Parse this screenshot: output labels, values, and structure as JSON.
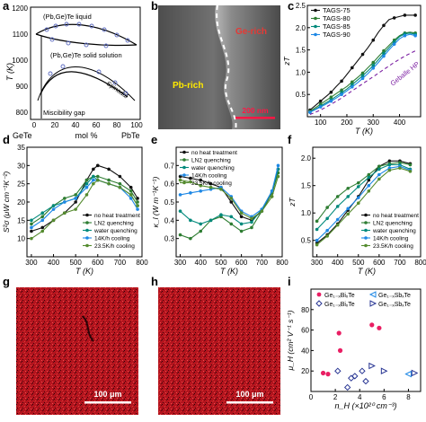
{
  "panels": [
    {
      "letter": "a"
    },
    {
      "letter": "b"
    },
    {
      "letter": "c"
    },
    {
      "letter": "d"
    },
    {
      "letter": "e"
    },
    {
      "letter": "f"
    },
    {
      "letter": "g"
    },
    {
      "letter": "h"
    },
    {
      "letter": "i"
    }
  ],
  "phase_diagram": {
    "ylabel": "T (K)",
    "xlabel": "mol %",
    "x_left_label": "GeTe",
    "x_right_label": "PbTe",
    "y_ticks": [
      800,
      900,
      1000,
      1100,
      1200
    ],
    "x_ticks": [
      0,
      20,
      40,
      60,
      80,
      100
    ],
    "labels": [
      "(Pb,Ge)Te liquid",
      "(Pb,Ge)Te solid solution",
      "Spinodal",
      "Miscibility gap"
    ]
  },
  "micrograph_b": {
    "labels": [
      "Ge-rich",
      "Pb-rich"
    ],
    "scalebar": "200 nm"
  },
  "map_g": {
    "scalebar": "100 μm"
  },
  "map_h": {
    "scalebar": "100 μm"
  },
  "chart_data": [
    {
      "panel": "c",
      "type": "line",
      "xlabel": "T (K)",
      "ylabel": "zT",
      "xlim": [
        50,
        480
      ],
      "ylim": [
        0,
        2.5
      ],
      "x_ticks": [
        100,
        200,
        300,
        400
      ],
      "y_ticks": [
        0.5,
        1.0,
        1.5,
        2.0,
        2.5
      ],
      "legend_position": "top-left",
      "series": [
        {
          "name": "TAGS-75",
          "color": "#111111",
          "x": [
            60,
            80,
            100,
            120,
            140,
            160,
            180,
            200,
            220,
            240,
            260,
            280,
            300,
            320,
            340,
            360,
            380,
            400,
            420,
            440,
            460
          ],
          "y": [
            0.15,
            0.25,
            0.35,
            0.45,
            0.55,
            0.68,
            0.8,
            0.95,
            1.1,
            1.25,
            1.4,
            1.55,
            1.72,
            1.9,
            2.05,
            2.18,
            2.22,
            2.25,
            2.28,
            2.28,
            2.28
          ]
        },
        {
          "name": "TAGS-80",
          "color": "#2e7d32",
          "x": [
            60,
            80,
            100,
            120,
            140,
            160,
            180,
            200,
            220,
            240,
            260,
            280,
            300,
            320,
            340,
            360,
            380,
            400,
            420,
            440,
            460
          ],
          "y": [
            0.12,
            0.2,
            0.28,
            0.36,
            0.44,
            0.52,
            0.6,
            0.68,
            0.78,
            0.88,
            0.98,
            1.1,
            1.22,
            1.35,
            1.48,
            1.6,
            1.72,
            1.82,
            1.88,
            1.9,
            1.88
          ]
        },
        {
          "name": "TAGS-85",
          "color": "#00897b",
          "x": [
            60,
            80,
            100,
            120,
            140,
            160,
            180,
            200,
            220,
            240,
            260,
            280,
            300,
            320,
            340,
            360,
            380,
            400,
            420,
            440,
            460
          ],
          "y": [
            0.1,
            0.17,
            0.24,
            0.31,
            0.38,
            0.46,
            0.54,
            0.62,
            0.72,
            0.82,
            0.92,
            1.03,
            1.15,
            1.28,
            1.42,
            1.55,
            1.68,
            1.8,
            1.86,
            1.88,
            1.85
          ]
        },
        {
          "name": "TAGS-90",
          "color": "#1e88e5",
          "x": [
            60,
            80,
            100,
            120,
            140,
            160,
            180,
            200,
            220,
            240,
            260,
            280,
            300,
            320,
            340,
            360,
            380,
            400,
            420,
            440,
            460
          ],
          "y": [
            0.1,
            0.16,
            0.22,
            0.28,
            0.35,
            0.42,
            0.5,
            0.58,
            0.67,
            0.76,
            0.86,
            0.97,
            1.09,
            1.22,
            1.36,
            1.5,
            1.63,
            1.75,
            1.82,
            1.85,
            1.82
          ]
        },
        {
          "name": "Geballe HP",
          "color": "#7b1fa2",
          "dashed": true,
          "x": [
            60,
            100,
            140,
            180,
            220,
            260,
            300,
            340,
            380,
            420,
            460
          ],
          "y": [
            0.05,
            0.15,
            0.28,
            0.42,
            0.58,
            0.74,
            0.9,
            1.06,
            1.22,
            1.36,
            1.48
          ]
        }
      ]
    },
    {
      "panel": "d",
      "type": "line",
      "xlabel": "T (K)",
      "ylabel": "S²σ (μW cm⁻¹K⁻²)",
      "xlim": [
        280,
        800
      ],
      "ylim": [
        5,
        35
      ],
      "x_ticks": [
        300,
        400,
        500,
        600,
        700,
        800
      ],
      "y_ticks": [
        10,
        15,
        20,
        25,
        30,
        35
      ],
      "legend_position": "bottom-right",
      "series": [
        {
          "name": "no heat treatment",
          "color": "#111111",
          "x": [
            300,
            350,
            400,
            450,
            500,
            550,
            580,
            600,
            650,
            700,
            750,
            780
          ],
          "y": [
            12,
            13,
            15,
            17,
            20,
            26,
            29,
            30,
            29,
            27,
            24,
            21
          ]
        },
        {
          "name": "LN2 quenching",
          "color": "#2e7d32",
          "x": [
            300,
            350,
            400,
            450,
            500,
            550,
            580,
            600,
            650,
            700,
            750,
            780
          ],
          "y": [
            14,
            16,
            19,
            21,
            22,
            26,
            27,
            27,
            26,
            25,
            23,
            20
          ]
        },
        {
          "name": "water quenching",
          "color": "#00897b",
          "x": [
            300,
            350,
            400,
            450,
            500,
            550,
            580,
            600,
            650,
            700,
            750,
            780
          ],
          "y": [
            15,
            17,
            19,
            20,
            21,
            25,
            27,
            26,
            25,
            24,
            22,
            19
          ]
        },
        {
          "name": "14K/h cooling",
          "color": "#1e88e5",
          "x": [
            300,
            350,
            400,
            450,
            500,
            550,
            580,
            600,
            650,
            700,
            750,
            780
          ],
          "y": [
            13,
            15,
            18,
            20,
            21,
            24,
            26,
            26,
            25,
            24,
            21,
            18
          ]
        },
        {
          "name": "23.5K/h cooling",
          "color": "#558b2f",
          "x": [
            300,
            350,
            400,
            450,
            500,
            550,
            580,
            600,
            650,
            700,
            750,
            780
          ],
          "y": [
            10,
            12,
            15,
            17,
            18,
            22,
            25,
            26,
            25,
            24,
            22,
            19
          ]
        }
      ]
    },
    {
      "panel": "e",
      "type": "line",
      "xlabel": "T (K)",
      "ylabel": "κ_l (W m⁻¹K⁻¹)",
      "xlim": [
        280,
        800
      ],
      "ylim": [
        0.2,
        0.8
      ],
      "x_ticks": [
        300,
        400,
        500,
        600,
        700,
        800
      ],
      "y_ticks": [
        0.3,
        0.4,
        0.5,
        0.6,
        0.7
      ],
      "legend_position": "top-left",
      "series": [
        {
          "name": "no heat treatment",
          "color": "#111111",
          "x": [
            300,
            350,
            400,
            450,
            500,
            550,
            600,
            650,
            700,
            750,
            780
          ],
          "y": [
            0.64,
            0.63,
            0.62,
            0.6,
            0.58,
            0.5,
            0.42,
            0.4,
            0.45,
            0.55,
            0.68
          ]
        },
        {
          "name": "LN2 quenching",
          "color": "#2e7d32",
          "x": [
            300,
            350,
            400,
            450,
            500,
            550,
            600,
            650,
            700,
            750,
            780
          ],
          "y": [
            0.32,
            0.3,
            0.34,
            0.4,
            0.42,
            0.38,
            0.34,
            0.36,
            0.45,
            0.55,
            0.66
          ]
        },
        {
          "name": "water quenching",
          "color": "#00897b",
          "x": [
            300,
            350,
            400,
            450,
            500,
            550,
            600,
            650,
            700,
            750,
            780
          ],
          "y": [
            0.45,
            0.4,
            0.38,
            0.4,
            0.43,
            0.42,
            0.38,
            0.39,
            0.46,
            0.56,
            0.68
          ]
        },
        {
          "name": "14K/h cooling",
          "color": "#1e88e5",
          "x": [
            300,
            350,
            400,
            450,
            500,
            550,
            600,
            650,
            700,
            750,
            780
          ],
          "y": [
            0.54,
            0.55,
            0.56,
            0.57,
            0.58,
            0.53,
            0.45,
            0.42,
            0.46,
            0.56,
            0.7
          ]
        },
        {
          "name": "23.5K/h cooling",
          "color": "#558b2f",
          "x": [
            300,
            350,
            400,
            450,
            500,
            550,
            600,
            650,
            700,
            750,
            780
          ],
          "y": [
            0.62,
            0.61,
            0.59,
            0.58,
            0.57,
            0.52,
            0.44,
            0.41,
            0.45,
            0.53,
            0.64
          ]
        }
      ]
    },
    {
      "panel": "f",
      "type": "line",
      "xlabel": "T (K)",
      "ylabel": "zT",
      "xlim": [
        280,
        800
      ],
      "ylim": [
        0.2,
        2.2
      ],
      "x_ticks": [
        300,
        400,
        500,
        600,
        700,
        800
      ],
      "y_ticks": [
        0.5,
        1.0,
        1.5,
        2.0
      ],
      "legend_position": "bottom-right",
      "series": [
        {
          "name": "no heat treatment",
          "color": "#111111",
          "x": [
            300,
            350,
            400,
            450,
            500,
            550,
            600,
            650,
            700,
            750
          ],
          "y": [
            0.45,
            0.6,
            0.8,
            1.05,
            1.3,
            1.6,
            1.85,
            1.95,
            1.95,
            1.9
          ]
        },
        {
          "name": "LN2 quenching",
          "color": "#2e7d32",
          "x": [
            300,
            350,
            400,
            450,
            500,
            550,
            600,
            650,
            700,
            750
          ],
          "y": [
            0.85,
            1.1,
            1.3,
            1.45,
            1.55,
            1.7,
            1.85,
            1.9,
            1.92,
            1.88
          ]
        },
        {
          "name": "water quenching",
          "color": "#00897b",
          "x": [
            300,
            350,
            400,
            450,
            500,
            550,
            600,
            650,
            700,
            750
          ],
          "y": [
            0.7,
            0.9,
            1.12,
            1.3,
            1.48,
            1.65,
            1.8,
            1.88,
            1.88,
            1.8
          ]
        },
        {
          "name": "14K/h cooling",
          "color": "#1e88e5",
          "x": [
            300,
            350,
            400,
            450,
            500,
            550,
            600,
            650,
            700,
            750
          ],
          "y": [
            0.5,
            0.68,
            0.88,
            1.08,
            1.28,
            1.5,
            1.7,
            1.82,
            1.85,
            1.78
          ]
        },
        {
          "name": "23.5K/h cooling",
          "color": "#558b2f",
          "x": [
            300,
            350,
            400,
            450,
            500,
            550,
            600,
            650,
            700,
            750
          ],
          "y": [
            0.42,
            0.58,
            0.78,
            0.98,
            1.18,
            1.4,
            1.62,
            1.78,
            1.82,
            1.76
          ]
        }
      ]
    },
    {
      "panel": "i",
      "type": "scatter",
      "xlabel": "n_H (×10²⁰ cm⁻³)",
      "ylabel": "μ_H (cm² V⁻¹ s⁻¹)",
      "xlim": [
        0,
        9
      ],
      "ylim": [
        0,
        100
      ],
      "x_ticks": [
        0,
        2,
        4,
        6,
        8
      ],
      "y_ticks": [
        20,
        40,
        60,
        80
      ],
      "legend_position": "top",
      "series": [
        {
          "name": "Ge₁₋ₓBiₓTe",
          "color": "#e91e63",
          "marker": "circle",
          "x": [
            1.0,
            1.4,
            2.3,
            2.4,
            5.0,
            5.6
          ],
          "y": [
            18,
            17,
            57,
            40,
            65,
            62
          ]
        },
        {
          "name": "Ge₁₋ₓBiₓTe",
          "color": "#283593",
          "marker": "diamond",
          "x": [
            2.2,
            3.0,
            3.3,
            3.6,
            4.2,
            4.5
          ],
          "y": [
            20,
            4,
            13,
            15,
            20,
            10
          ]
        },
        {
          "name": "Ge₁₋ₓSbₓTe",
          "color": "#1e88e5",
          "marker": "triangle-left",
          "x": [
            8.0
          ],
          "y": [
            17
          ]
        },
        {
          "name": "Ge₁₋ₓSbₓTe",
          "color": "#283593",
          "marker": "triangle-right",
          "x": [
            5.0,
            6.0,
            8.5
          ],
          "y": [
            25,
            20,
            18
          ]
        }
      ]
    }
  ]
}
